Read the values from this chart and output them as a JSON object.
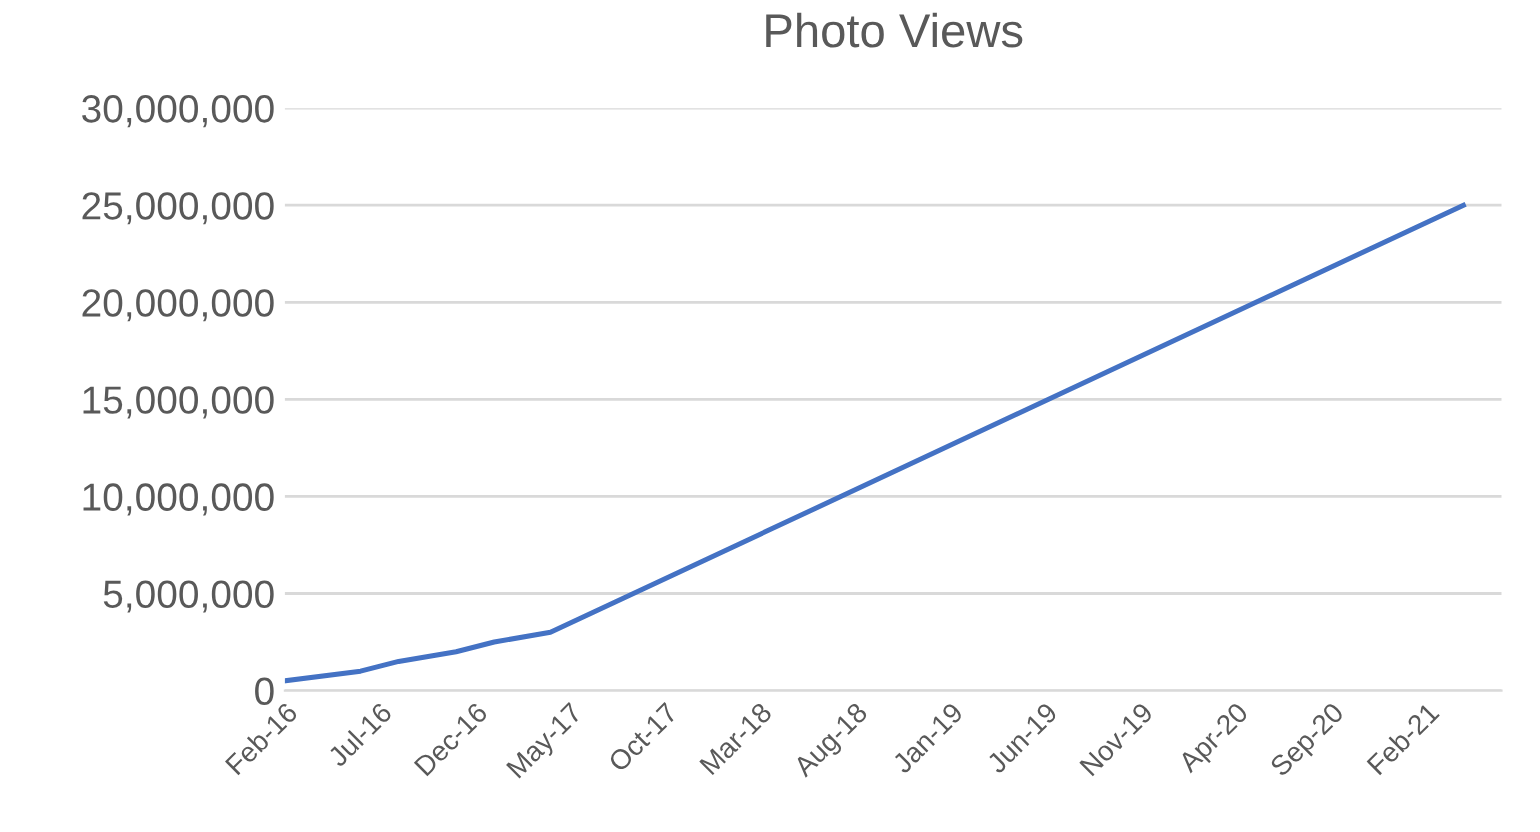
{
  "chart_data": {
    "type": "line",
    "title": "Photo Views",
    "x": [
      "2016-02",
      "2016-06",
      "2016-08",
      "2016-11",
      "2017-01",
      "2017-04",
      "2021-04"
    ],
    "series": [
      {
        "color": "#4472c4",
        "values": [
          500000,
          1000000,
          1500000,
          2000000,
          2500000,
          3000000,
          25000000
        ]
      }
    ],
    "xlim": [
      "2016-02",
      "2021-06"
    ],
    "xticks": [
      {
        "value": "2016-02",
        "label": "Feb-16"
      },
      {
        "value": "2016-07",
        "label": "Jul-16"
      },
      {
        "value": "2016-12",
        "label": "Dec-16"
      },
      {
        "value": "2017-05",
        "label": "May-17"
      },
      {
        "value": "2017-10",
        "label": "Oct-17"
      },
      {
        "value": "2018-03",
        "label": "Mar-18"
      },
      {
        "value": "2018-08",
        "label": "Aug-18"
      },
      {
        "value": "2019-01",
        "label": "Jan-19"
      },
      {
        "value": "2019-06",
        "label": "Jun-19"
      },
      {
        "value": "2019-11",
        "label": "Nov-19"
      },
      {
        "value": "2020-04",
        "label": "Apr-20"
      },
      {
        "value": "2020-09",
        "label": "Sep-20"
      },
      {
        "value": "2021-02",
        "label": "Feb-21"
      }
    ],
    "ylim": [
      0,
      30000000
    ],
    "yticks": [
      {
        "value": 0,
        "label": "0"
      },
      {
        "value": 5000000,
        "label": "5,000,000"
      },
      {
        "value": 10000000,
        "label": "10,000,000"
      },
      {
        "value": 15000000,
        "label": "15,000,000"
      },
      {
        "value": 20000000,
        "label": "20,000,000"
      },
      {
        "value": 25000000,
        "label": "25,000,000"
      },
      {
        "value": 30000000,
        "label": "30,000,000"
      }
    ],
    "grid": "y",
    "legend": false,
    "marker": "none",
    "line_style": "solid"
  }
}
